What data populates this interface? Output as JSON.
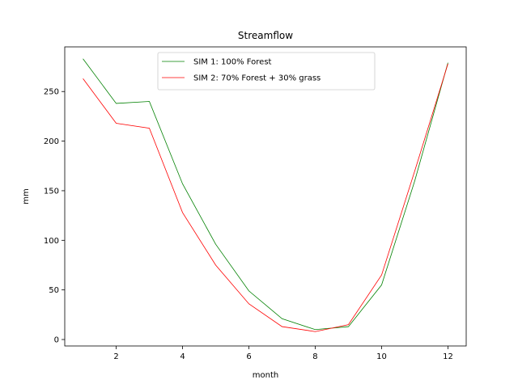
{
  "chart_data": {
    "type": "line",
    "title": "Streamflow",
    "xlabel": "month",
    "ylabel": "mm",
    "xlim": [
      0.45,
      12.55
    ],
    "ylim": [
      -6.5,
      295
    ],
    "xticks": [
      2,
      4,
      6,
      8,
      10,
      12
    ],
    "yticks": [
      0,
      50,
      100,
      150,
      200,
      250
    ],
    "grid": false,
    "legend": "upper center",
    "x": [
      1,
      2,
      3,
      4,
      5,
      6,
      7,
      8,
      9,
      10,
      11,
      12
    ],
    "series": [
      {
        "name": "SIM 1: 100% Forest",
        "color": "#008000",
        "values": [
          283,
          238,
          240,
          157,
          96,
          49,
          21,
          10,
          13,
          55,
          160,
          279
        ]
      },
      {
        "name": "SIM 2: 70% Forest + 30% grass",
        "color": "#ff0000",
        "values": [
          263,
          218,
          213,
          128,
          75,
          36,
          13,
          8,
          15,
          65,
          170,
          278
        ]
      }
    ]
  }
}
